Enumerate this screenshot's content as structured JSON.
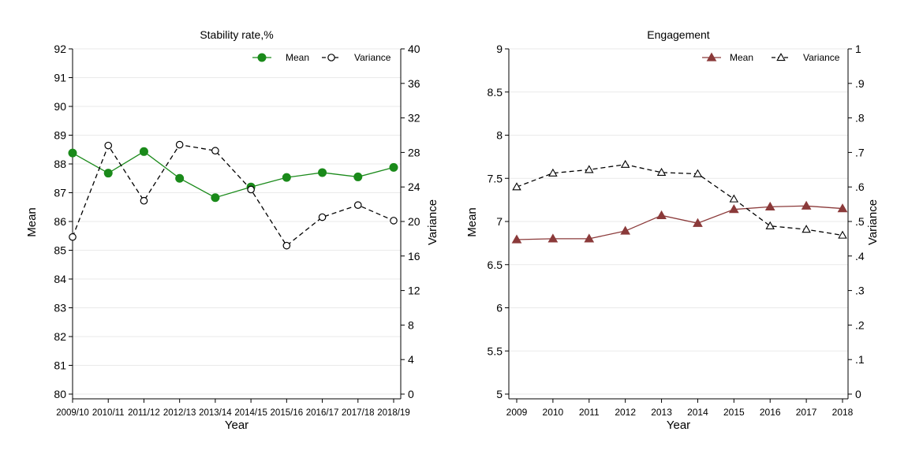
{
  "chart_data": [
    {
      "type": "line",
      "title": "Stability rate,%",
      "xlabel": "Year",
      "ylabel": "Mean",
      "y2label": "Variance",
      "categories": [
        "2009/10",
        "2010/11",
        "2011/12",
        "2012/13",
        "2013/14",
        "2014/15",
        "2015/16",
        "2016/17",
        "2017/18",
        "2018/19"
      ],
      "ylim": [
        80,
        92
      ],
      "y_ticks": [
        "80",
        "81",
        "82",
        "83",
        "84",
        "85",
        "86",
        "87",
        "88",
        "89",
        "90",
        "91",
        "92"
      ],
      "y2lim": [
        0,
        40
      ],
      "y2_ticks": [
        "0",
        "4",
        "8",
        "12",
        "16",
        "20",
        "24",
        "28",
        "32",
        "36",
        "40"
      ],
      "grid": true,
      "legend_position": "top-right",
      "series": [
        {
          "name": "Mean",
          "axis": "left",
          "color": "#1a8a1a",
          "marker": "circle-filled",
          "dashed": false,
          "values": [
            88.38,
            87.68,
            88.43,
            87.5,
            86.83,
            87.2,
            87.53,
            87.7,
            87.55,
            87.88
          ]
        },
        {
          "name": "Variance",
          "axis": "right",
          "color": "#000000",
          "marker": "circle-open",
          "dashed": true,
          "values": [
            18.2,
            28.8,
            22.4,
            28.9,
            28.2,
            23.7,
            17.2,
            20.5,
            21.9,
            20.1
          ]
        }
      ]
    },
    {
      "type": "line",
      "title": "Engagement",
      "xlabel": "Year",
      "ylabel": "Mean",
      "y2label": "Variance",
      "categories": [
        "2009",
        "2010",
        "2011",
        "2012",
        "2013",
        "2014",
        "2015",
        "2016",
        "2017",
        "2018"
      ],
      "ylim": [
        5,
        9
      ],
      "y_ticks": [
        "5",
        "5.5",
        "6",
        "6.5",
        "7",
        "7.5",
        "8",
        "8.5",
        "9"
      ],
      "y2lim": [
        0,
        1
      ],
      "y2_ticks": [
        "0",
        ".1",
        ".2",
        ".3",
        ".4",
        ".5",
        ".6",
        ".7",
        ".8",
        ".9",
        "1"
      ],
      "grid": true,
      "legend_position": "top-right",
      "series": [
        {
          "name": "Mean",
          "axis": "left",
          "color": "#8b3a3a",
          "marker": "triangle-filled",
          "dashed": false,
          "values": [
            6.79,
            6.8,
            6.8,
            6.89,
            7.07,
            6.98,
            7.14,
            7.17,
            7.18,
            7.15
          ]
        },
        {
          "name": "Variance",
          "axis": "right",
          "color": "#000000",
          "marker": "triangle-open",
          "dashed": true,
          "values": [
            0.6,
            0.64,
            0.65,
            0.665,
            0.642,
            0.638,
            0.565,
            0.487,
            0.477,
            0.46
          ]
        }
      ]
    }
  ]
}
